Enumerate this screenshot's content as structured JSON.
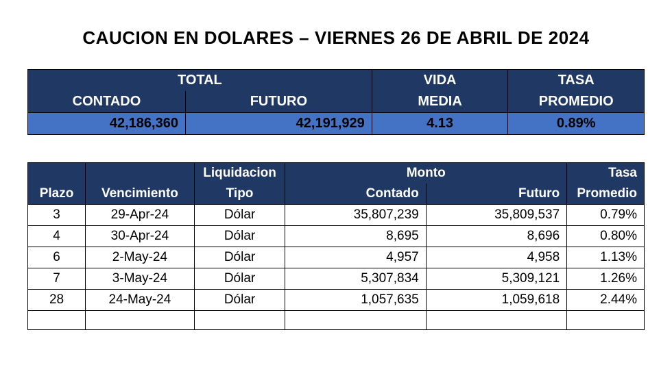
{
  "title": "CAUCION EN DOLARES – VIERNES 26 DE ABRIL DE 2024",
  "colors": {
    "header_bg": "#203864",
    "header_fg": "#ffffff",
    "value_bg": "#4472c4",
    "value_fg": "#000000",
    "border": "#000000",
    "page_bg": "#ffffff"
  },
  "fonts": {
    "title_size_pt": 26,
    "header_size_pt": 20,
    "value_size_pt": 22,
    "body_size_pt": 19,
    "family": "Arial"
  },
  "summary": {
    "headers": {
      "total": "TOTAL",
      "contado": "CONTADO",
      "futuro": "FUTURO",
      "vida": "VIDA",
      "media": "MEDIA",
      "tasa": "TASA",
      "promedio": "PROMEDIO"
    },
    "values": {
      "contado": "42,186,360",
      "futuro": "42,191,929",
      "vida_media": "4.13",
      "tasa_promedio": "0.89%"
    },
    "col_widths_pct": [
      22,
      26,
      19,
      19
    ]
  },
  "detail": {
    "headers": {
      "plazo": "Plazo",
      "vencimiento": "Vencimiento",
      "liquidacion": "Liquidacion",
      "tipo": "Tipo",
      "monto": "Monto",
      "contado": "Contado",
      "futuro": "Futuro",
      "tasa": "Tasa",
      "promedio": "Promedio"
    },
    "col_widths_pct": [
      9,
      17,
      14,
      22,
      22,
      12
    ],
    "rows": [
      {
        "plazo": "3",
        "vencimiento": "29-Apr-24",
        "tipo": "Dólar",
        "contado": "35,807,239",
        "futuro": "35,809,537",
        "tasa": "0.79%"
      },
      {
        "plazo": "4",
        "vencimiento": "30-Apr-24",
        "tipo": "Dólar",
        "contado": "8,695",
        "futuro": "8,696",
        "tasa": "0.80%"
      },
      {
        "plazo": "6",
        "vencimiento": "2-May-24",
        "tipo": "Dólar",
        "contado": "4,957",
        "futuro": "4,958",
        "tasa": "1.13%"
      },
      {
        "plazo": "7",
        "vencimiento": "3-May-24",
        "tipo": "Dólar",
        "contado": "5,307,834",
        "futuro": "5,309,121",
        "tasa": "1.26%"
      },
      {
        "plazo": "28",
        "vencimiento": "24-May-24",
        "tipo": "Dólar",
        "contado": "1,057,635",
        "futuro": "1,059,618",
        "tasa": "2.44%"
      }
    ]
  }
}
